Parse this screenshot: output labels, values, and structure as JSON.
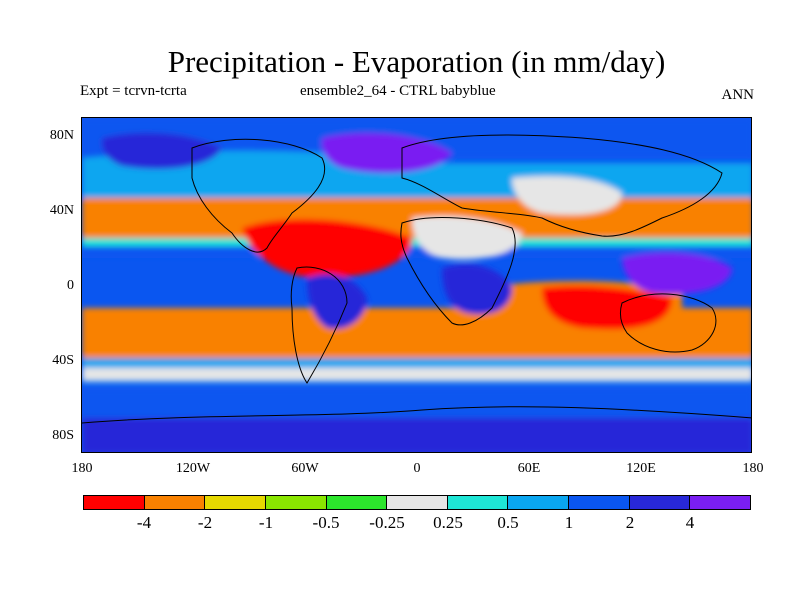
{
  "title": "Precipitation - Evaporation (in mm/day)",
  "subtitle_left": "Expt = tcrvn-tcrta",
  "subtitle_center": "ensemble2_64 - CTRL babyblue",
  "subtitle_right": "ANN",
  "lat_labels": [
    "80N",
    "40N",
    "0",
    "40S",
    "80S"
  ],
  "lon_labels": [
    "180",
    "120W",
    "60W",
    "0",
    "60E",
    "120E",
    "180"
  ],
  "colorbar": {
    "colors": [
      "#ff0000",
      "#f98100",
      "#e6d800",
      "#8ae600",
      "#2ce62c",
      "#e6e6e6",
      "#1ee6d6",
      "#0aa6f0",
      "#0a56f0",
      "#2828d8",
      "#7a1ef2"
    ],
    "labels": [
      "-4",
      "-2",
      "-1",
      "-0.5",
      "-0.25",
      "0.25",
      "0.5",
      "1",
      "2",
      "4"
    ]
  },
  "map_regions": [
    {
      "name": "region-polar-north",
      "color": "#0a56f0"
    },
    {
      "name": "region-southern-ocean",
      "color": "#0a56f0"
    },
    {
      "name": "region-antarctica-coast",
      "color": "#2828d8"
    },
    {
      "name": "region-itcz",
      "color": "#1ee6d6"
    },
    {
      "name": "region-subtropics-north",
      "color": "#f98100"
    },
    {
      "name": "region-subtropics-south",
      "color": "#f98100"
    },
    {
      "name": "region-sahara",
      "color": "#e6e6e6"
    },
    {
      "name": "region-central-asia",
      "color": "#e6e6e6"
    },
    {
      "name": "region-tropical-atlantic",
      "color": "#ff0000"
    },
    {
      "name": "region-south-indian-ocean",
      "color": "#ff0000"
    },
    {
      "name": "region-southeast-pacific",
      "color": "#f98100"
    },
    {
      "name": "region-amazon",
      "color": "#2828d8"
    },
    {
      "name": "region-central-africa",
      "color": "#2828d8"
    },
    {
      "name": "region-maritime-continent",
      "color": "#7a1ef2"
    },
    {
      "name": "region-north-atlantic-storm",
      "color": "#7a1ef2"
    },
    {
      "name": "region-north-pacific-storm",
      "color": "#2828d8"
    }
  ]
}
